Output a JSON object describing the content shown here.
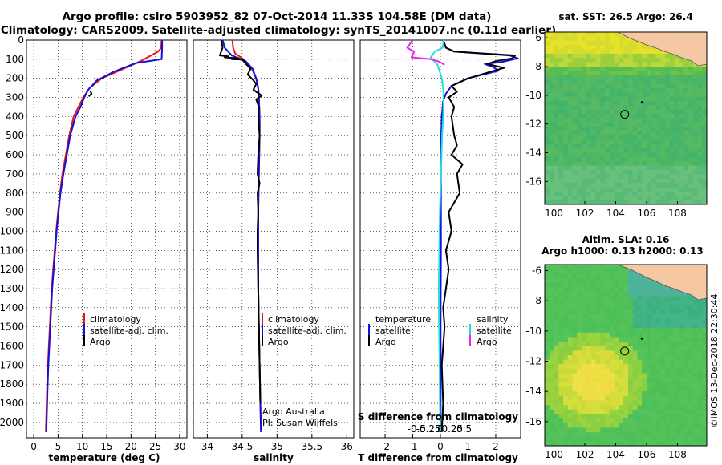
{
  "title_line1": "Argo profile: csiro 5903952_82 07-Oct-2014 11.33S 104.58E (DM data)",
  "title_line2": "Climatology: CARS2009. Satellite-adjusted climatology: synTS_20141007.nc (0.11d earlier)",
  "credit_vertical": "©IMOS 13-Dec-2018 22:30:44",
  "colors": {
    "climatology": "#ee1111",
    "satellite": "#1111dd",
    "argo": "#000000",
    "salinity_satellite": "#22dddd",
    "salinity_argo": "#ee22ee",
    "land": "#f5c7a3"
  },
  "chart_data": [
    {
      "type": "line",
      "id": "temperature",
      "xlabel": "temperature (deg C)",
      "ylabel": "",
      "xlim": [
        -1.5,
        31.5
      ],
      "ylim": [
        2080,
        0
      ],
      "xticks": [
        0,
        5,
        10,
        15,
        20,
        25,
        30
      ],
      "xtick_labels": [
        "0",
        "5",
        "10",
        "15",
        "20",
        "25",
        "30"
      ],
      "yticks": [
        0,
        100,
        200,
        300,
        400,
        500,
        600,
        700,
        800,
        900,
        1000,
        1100,
        1200,
        1300,
        1400,
        1500,
        1600,
        1700,
        1800,
        1900,
        2000
      ],
      "ytick_labels": [
        "0",
        "100",
        "200",
        "300",
        "400",
        "500",
        "600",
        "700",
        "800",
        "900",
        "1000",
        "1100",
        "1200",
        "1300",
        "1400",
        "1500",
        "1600",
        "1700",
        "1800",
        "1900",
        "2000"
      ],
      "legend": [
        "climatology",
        "satellite-adj. clim.",
        "Argo"
      ],
      "series": [
        {
          "name": "climatology",
          "color": "#ee1111",
          "x": [
            26.3,
            26.2,
            25.6,
            22,
            17.5,
            14,
            11.5,
            10.2,
            9.2,
            8.2,
            7.3,
            6.6,
            5.9,
            5.4,
            5,
            4.6,
            4.3,
            4,
            3.7,
            3.5,
            3.3,
            3.1,
            2.9,
            2.7,
            2.5
          ],
          "y": [
            0,
            40,
            60,
            110,
            160,
            200,
            250,
            300,
            350,
            400,
            500,
            600,
            700,
            800,
            900,
            1000,
            1100,
            1200,
            1300,
            1400,
            1500,
            1600,
            1700,
            1850,
            2050
          ]
        },
        {
          "name": "satellite-adj. clim.",
          "color": "#1111dd",
          "x": [
            26.4,
            26.4,
            26.3,
            21,
            16.5,
            13,
            11.2,
            10.4,
            9.6,
            8.6,
            7.5,
            6.8,
            6.1,
            5.5,
            5.1,
            4.7,
            4.4,
            4.1,
            3.8,
            3.6,
            3.4,
            3.2,
            3,
            2.8,
            2.6
          ],
          "y": [
            0,
            40,
            100,
            120,
            165,
            210,
            260,
            300,
            350,
            400,
            500,
            600,
            700,
            800,
            900,
            1000,
            1100,
            1200,
            1300,
            1400,
            1500,
            1600,
            1700,
            1850,
            2050
          ]
        },
        {
          "name": "Argo",
          "color": "#000000",
          "x": [
            11.6,
            11.9,
            11.3
          ],
          "y": [
            265,
            280,
            295
          ]
        }
      ]
    },
    {
      "type": "line",
      "id": "salinity",
      "xlabel": "salinity",
      "ylabel": "",
      "xlim": [
        33.8,
        36.1
      ],
      "ylim": [
        2080,
        0
      ],
      "xticks": [
        34,
        34.5,
        35,
        35.5,
        36
      ],
      "xtick_labels": [
        "34",
        "34.5",
        "35",
        "35.5",
        "36"
      ],
      "legend": [
        "climatology",
        "satellite-adj. clim.",
        "Argo"
      ],
      "footnote": [
        "Argo Australia",
        "PI: Susan Wijffels"
      ],
      "series": [
        {
          "name": "climatology",
          "color": "#ee1111",
          "x": [
            34.36,
            34.37,
            34.4,
            34.52,
            34.64,
            34.7,
            34.73,
            34.74,
            34.75,
            34.75,
            34.74,
            34.73,
            34.73,
            34.73,
            34.74,
            34.75,
            34.76,
            34.77
          ],
          "y": [
            0,
            40,
            70,
            100,
            150,
            200,
            250,
            300,
            400,
            500,
            700,
            900,
            1100,
            1300,
            1500,
            1700,
            1900,
            2050
          ]
        },
        {
          "name": "satellite-adj. clim.",
          "color": "#1111dd",
          "x": [
            34.22,
            34.25,
            34.35,
            34.55,
            34.65,
            34.7,
            34.73,
            34.74,
            34.75,
            34.75,
            34.74,
            34.73,
            34.73,
            34.73,
            34.74,
            34.75,
            34.76,
            34.77
          ],
          "y": [
            0,
            40,
            80,
            110,
            150,
            200,
            250,
            300,
            400,
            500,
            700,
            900,
            1100,
            1300,
            1500,
            1700,
            1900,
            2050
          ]
        },
        {
          "name": "Argo",
          "color": "#000000",
          "x": [
            34.2,
            34.22,
            34.18,
            34.3,
            34.25,
            34.45,
            34.35,
            34.5,
            34.62,
            34.58,
            34.66,
            34.7,
            34.66,
            34.78,
            34.7,
            34.74,
            34.73,
            34.75,
            34.73,
            34.72,
            34.75,
            34.72,
            34.73,
            34.72,
            34.72,
            34.73,
            34.74,
            34.75,
            34.76
          ],
          "y": [
            0,
            40,
            80,
            85,
            90,
            95,
            100,
            102,
            150,
            180,
            210,
            230,
            260,
            290,
            310,
            350,
            400,
            500,
            600,
            700,
            750,
            800,
            900,
            1000,
            1100,
            1300,
            1500,
            1700,
            1900
          ]
        }
      ]
    },
    {
      "type": "line",
      "id": "difference",
      "xlabel": "T difference from climatology",
      "xlabel_top": "S difference from climatology",
      "ylabel": "",
      "xlim": [
        -2.9,
        2.9
      ],
      "ylim": [
        2080,
        0
      ],
      "xticks": [
        -2,
        -1,
        0,
        1,
        2
      ],
      "xtick_labels": [
        "-2",
        "-1",
        "0",
        "1",
        "2"
      ],
      "s_xticks": [
        -0.5,
        -0.25,
        0,
        0.25,
        0.5
      ],
      "s_xtick_labels": [
        "-0.5",
        "-0.25",
        "0",
        "0.25",
        "0.5"
      ],
      "legend_temperature": {
        "heading": "temperature",
        "items": [
          "satellite",
          "Argo"
        ]
      },
      "legend_salinity": {
        "heading": "salinity",
        "items": [
          "satellite",
          "Argo"
        ]
      },
      "series": [
        {
          "name": "T satellite",
          "color": "#1111dd",
          "x": [
            0.1,
            0.2,
            0.5,
            1.5,
            2.5,
            2.8,
            2.2,
            1.6,
            1.9,
            2.1,
            1,
            0.4,
            0.2,
            0.1,
            0.05,
            0.03,
            0.02,
            0.02,
            0.02,
            0.01,
            0.01,
            0.01
          ],
          "y": [
            0,
            40,
            60,
            70,
            80,
            95,
            115,
            125,
            140,
            160,
            200,
            240,
            280,
            320,
            400,
            500,
            700,
            900,
            1100,
            1400,
            1700,
            2050
          ]
        },
        {
          "name": "T Argo",
          "color": "#000000",
          "x": [
            0.1,
            0.2,
            0.5,
            1.6,
            2.7,
            2.6,
            2,
            1.7,
            2.3,
            1,
            0.4,
            0.6,
            0.3,
            0.5,
            0.4,
            0.5,
            0.6,
            0.4,
            0.8,
            0.6,
            0.7,
            0.5,
            0.3,
            0.4,
            0.2,
            0.3,
            0.2,
            0.1,
            0.15,
            0.05,
            0.1,
            0.05
          ],
          "y": [
            0,
            40,
            60,
            70,
            80,
            95,
            110,
            125,
            145,
            200,
            240,
            270,
            300,
            350,
            400,
            500,
            550,
            600,
            650,
            700,
            800,
            850,
            900,
            1000,
            1100,
            1200,
            1300,
            1400,
            1500,
            1700,
            1900,
            2050
          ]
        },
        {
          "name": "S satellite",
          "color": "#22dddd",
          "x": [
            0.12,
            0.08,
            -0.2,
            -0.35,
            -0.1,
            0.05,
            0.1,
            0.12,
            0.1,
            0.06,
            0.04,
            0.02,
            0,
            -0.02,
            -0.04,
            -0.06,
            -0.05,
            -0.03,
            -0.02,
            0
          ],
          "y": [
            0,
            40,
            60,
            90,
            130,
            200,
            250,
            300,
            400,
            500,
            600,
            700,
            800,
            900,
            1100,
            1300,
            1500,
            1700,
            1900,
            2050
          ]
        },
        {
          "name": "S Argo",
          "color": "#ee22ee",
          "x": [
            -1,
            -1.2,
            -0.95,
            -1.05,
            -0.35,
            -0.1,
            0.05,
            0.15
          ],
          "y": [
            0,
            40,
            60,
            90,
            100,
            110,
            120,
            130
          ]
        }
      ]
    },
    {
      "type": "heatmap",
      "id": "sst-map",
      "title": "sat. SST: 26.5 Argo: 26.4",
      "xlim": [
        99.4,
        109.9
      ],
      "ylim": [
        -17.6,
        -5.6
      ],
      "xticks": [
        100,
        102,
        104,
        106,
        108
      ],
      "xtick_labels": [
        "100",
        "102",
        "104",
        "106",
        "108"
      ],
      "yticks": [
        -6,
        -8,
        -10,
        -12,
        -14,
        -16
      ],
      "ytick_labels": [
        "-6",
        "-8",
        "-10",
        "-12",
        "-14",
        "-16"
      ],
      "profile_marker": {
        "lon": 104.58,
        "lat": -11.33
      },
      "island_marker": {
        "lon": 105.7,
        "lat": -10.5
      }
    },
    {
      "type": "heatmap",
      "id": "sla-map",
      "title": "Altim. SLA: 0.16",
      "subtitle": "Argo h1000: 0.13 h2000: 0.13",
      "xlim": [
        99.4,
        109.9
      ],
      "ylim": [
        -17.6,
        -5.6
      ],
      "xticks": [
        100,
        102,
        104,
        106,
        108
      ],
      "xtick_labels": [
        "100",
        "102",
        "104",
        "106",
        "108"
      ],
      "yticks": [
        -6,
        -8,
        -10,
        -12,
        -14,
        -16
      ],
      "ytick_labels": [
        "-6",
        "-8",
        "-10",
        "-12",
        "-14",
        "-16"
      ],
      "profile_marker": {
        "lon": 104.58,
        "lat": -11.33
      },
      "island_marker": {
        "lon": 105.7,
        "lat": -10.5
      }
    }
  ]
}
